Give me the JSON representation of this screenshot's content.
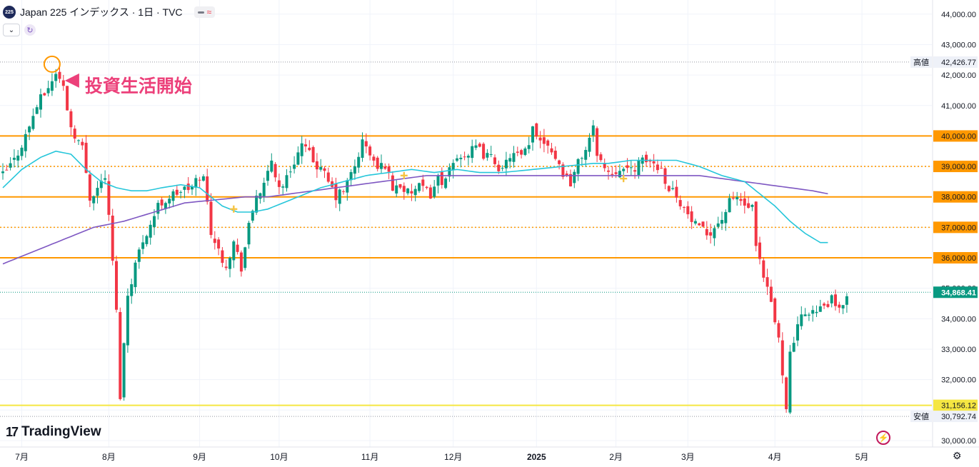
{
  "header": {
    "symbol_badge": "225",
    "title": "Japan 225 インデックス · 1日 · TVC",
    "collapse_icon": "chevron-down-icon",
    "sync_icon": "sync-icon"
  },
  "annotation": {
    "text": "投資生活開始"
  },
  "branding": {
    "logo_text": "TradingView",
    "logo_mark": "17"
  },
  "price_tags": {
    "high_label": "高値",
    "high_value": "42,426.77",
    "low_label": "安値",
    "low_value": "30,792.74",
    "last_value": "34,868.41",
    "support_value": "31,156.12"
  },
  "colors": {
    "up": "#089981",
    "down": "#f23645",
    "orange": "#ff9800",
    "yellow": "#f5e642",
    "ma_short": "#26c6da",
    "ma_long": "#7e57c2",
    "annotation": "#ec407a",
    "cross": "#f6c342"
  },
  "chart_data": {
    "type": "candlestick",
    "title": "Japan 225 インデックス · 1日 · TVC",
    "ylim": [
      29600,
      44300
    ],
    "y_ticks": [
      30000,
      31000,
      32000,
      33000,
      34000,
      35000,
      36000,
      37000,
      38000,
      39000,
      40000,
      41000,
      42000,
      43000,
      44000
    ],
    "y_tick_labels": [
      "30,000.00",
      "31,000.00",
      "32,000.00",
      "33,000.00",
      "34,000.00",
      "35,000.00",
      "36,000.00",
      "37,000.00",
      "38,000.00",
      "39,000.00",
      "40,000.00",
      "41,000.00",
      "42,000.00",
      "43,000.00",
      "44,000.00"
    ],
    "x_tick_labels": [
      "7月",
      "8月",
      "9月",
      "10月",
      "11月",
      "12月",
      "2025",
      "2月",
      "3月",
      "4月",
      "5月"
    ],
    "x_tick_bar_index": [
      5,
      28,
      52,
      73,
      97,
      119,
      141,
      162,
      181,
      204,
      227
    ],
    "bar_count": 235,
    "horizontal_levels": [
      {
        "value": 40000,
        "style": "solid",
        "label": "40,000.00"
      },
      {
        "value": 39000,
        "style": "dotted",
        "label": "39,000.00"
      },
      {
        "value": 38000,
        "style": "solid",
        "label": "38,000.00"
      },
      {
        "value": 37000,
        "style": "dotted",
        "label": "37,000.00"
      },
      {
        "value": 36000,
        "style": "solid",
        "label": "36,000.00"
      },
      {
        "value": 31156.12,
        "style": "solid-yellow",
        "label": "31,156.12"
      }
    ],
    "high": 42426.77,
    "low": 30792.74,
    "last": 34868.41,
    "anchors": [
      [
        0,
        38700
      ],
      [
        3,
        39200
      ],
      [
        6,
        40000
      ],
      [
        9,
        41000
      ],
      [
        13,
        41800
      ],
      [
        14,
        42100
      ],
      [
        16,
        41600
      ],
      [
        18,
        40300
      ],
      [
        21,
        39600
      ],
      [
        23,
        38000
      ],
      [
        25,
        38300
      ],
      [
        27,
        38700
      ],
      [
        28,
        37300
      ],
      [
        29,
        35900
      ],
      [
        30,
        34200
      ],
      [
        31,
        31500
      ],
      [
        33,
        34800
      ],
      [
        35,
        35800
      ],
      [
        37,
        36600
      ],
      [
        39,
        37100
      ],
      [
        41,
        37700
      ],
      [
        44,
        38000
      ],
      [
        47,
        38200
      ],
      [
        50,
        38300
      ],
      [
        52,
        38700
      ],
      [
        53,
        38600
      ],
      [
        54,
        37800
      ],
      [
        55,
        36900
      ],
      [
        57,
        36200
      ],
      [
        59,
        35800
      ],
      [
        61,
        36500
      ],
      [
        63,
        35700
      ],
      [
        65,
        37000
      ],
      [
        67,
        38100
      ],
      [
        69,
        38300
      ],
      [
        71,
        39200
      ],
      [
        73,
        38300
      ],
      [
        75,
        38600
      ],
      [
        77,
        39200
      ],
      [
        79,
        39700
      ],
      [
        82,
        39200
      ],
      [
        85,
        38700
      ],
      [
        88,
        38000
      ],
      [
        90,
        38200
      ],
      [
        93,
        39000
      ],
      [
        95,
        39800
      ],
      [
        97,
        39400
      ],
      [
        99,
        38900
      ],
      [
        101,
        39100
      ],
      [
        103,
        38300
      ],
      [
        105,
        38400
      ],
      [
        107,
        38100
      ],
      [
        110,
        38300
      ],
      [
        113,
        38100
      ],
      [
        115,
        38600
      ],
      [
        117,
        38500
      ],
      [
        119,
        39100
      ],
      [
        121,
        39400
      ],
      [
        123,
        39400
      ],
      [
        125,
        39600
      ],
      [
        127,
        39400
      ],
      [
        130,
        39200
      ],
      [
        132,
        38800
      ],
      [
        134,
        39400
      ],
      [
        137,
        39300
      ],
      [
        139,
        39600
      ],
      [
        140,
        40300
      ],
      [
        142,
        39900
      ],
      [
        144,
        39800
      ],
      [
        146,
        39300
      ],
      [
        148,
        38800
      ],
      [
        150,
        38500
      ],
      [
        152,
        39100
      ],
      [
        154,
        39600
      ],
      [
        156,
        40200
      ],
      [
        157,
        39500
      ],
      [
        159,
        38900
      ],
      [
        161,
        38800
      ],
      [
        163,
        39000
      ],
      [
        165,
        38800
      ],
      [
        167,
        39000
      ],
      [
        170,
        39200
      ],
      [
        172,
        39100
      ],
      [
        174,
        38900
      ],
      [
        176,
        38300
      ],
      [
        178,
        38100
      ],
      [
        180,
        37600
      ],
      [
        182,
        37200
      ],
      [
        184,
        36900
      ],
      [
        186,
        36800
      ],
      [
        188,
        37000
      ],
      [
        190,
        37300
      ],
      [
        192,
        37800
      ],
      [
        194,
        38000
      ],
      [
        196,
        37700
      ],
      [
        198,
        37600
      ],
      [
        199,
        36300
      ],
      [
        201,
        35300
      ],
      [
        203,
        34500
      ],
      [
        205,
        33300
      ],
      [
        207,
        31200
      ],
      [
        208,
        32800
      ],
      [
        209,
        33300
      ],
      [
        211,
        34000
      ],
      [
        213,
        34300
      ],
      [
        215,
        34200
      ],
      [
        217,
        34400
      ],
      [
        219,
        34600
      ],
      [
        221,
        34200
      ],
      [
        223,
        34868.41
      ]
    ],
    "ma_short_anchors": [
      [
        0,
        38300
      ],
      [
        5,
        38900
      ],
      [
        10,
        39300
      ],
      [
        14,
        39500
      ],
      [
        18,
        39400
      ],
      [
        22,
        38900
      ],
      [
        26,
        38500
      ],
      [
        30,
        38300
      ],
      [
        34,
        38200
      ],
      [
        38,
        38200
      ],
      [
        42,
        38300
      ],
      [
        47,
        38400
      ],
      [
        52,
        38300
      ],
      [
        55,
        38000
      ],
      [
        58,
        37700
      ],
      [
        62,
        37500
      ],
      [
        66,
        37500
      ],
      [
        70,
        37600
      ],
      [
        74,
        37800
      ],
      [
        78,
        38000
      ],
      [
        84,
        38300
      ],
      [
        90,
        38500
      ],
      [
        96,
        38700
      ],
      [
        102,
        38800
      ],
      [
        108,
        38900
      ],
      [
        114,
        38800
      ],
      [
        120,
        38900
      ],
      [
        126,
        38800
      ],
      [
        132,
        38800
      ],
      [
        140,
        38900
      ],
      [
        148,
        39000
      ],
      [
        156,
        39100
      ],
      [
        160,
        39100
      ],
      [
        166,
        39200
      ],
      [
        172,
        39200
      ],
      [
        178,
        39200
      ],
      [
        184,
        39000
      ],
      [
        190,
        38700
      ],
      [
        196,
        38500
      ],
      [
        200,
        38100
      ],
      [
        204,
        37700
      ],
      [
        208,
        37200
      ],
      [
        212,
        36800
      ],
      [
        216,
        36500
      ],
      [
        218,
        36500
      ]
    ],
    "ma_long_anchors": [
      [
        0,
        35800
      ],
      [
        8,
        36200
      ],
      [
        16,
        36600
      ],
      [
        24,
        37000
      ],
      [
        32,
        37200
      ],
      [
        40,
        37500
      ],
      [
        48,
        37800
      ],
      [
        56,
        37900
      ],
      [
        64,
        38000
      ],
      [
        70,
        38000
      ],
      [
        76,
        38100
      ],
      [
        82,
        38200
      ],
      [
        88,
        38300
      ],
      [
        94,
        38400
      ],
      [
        100,
        38500
      ],
      [
        106,
        38600
      ],
      [
        112,
        38700
      ],
      [
        118,
        38700
      ],
      [
        124,
        38700
      ],
      [
        130,
        38700
      ],
      [
        136,
        38700
      ],
      [
        142,
        38700
      ],
      [
        148,
        38700
      ],
      [
        154,
        38700
      ],
      [
        160,
        38700
      ],
      [
        166,
        38700
      ],
      [
        172,
        38700
      ],
      [
        178,
        38700
      ],
      [
        184,
        38700
      ],
      [
        190,
        38600
      ],
      [
        196,
        38500
      ],
      [
        202,
        38400
      ],
      [
        208,
        38300
      ],
      [
        214,
        38200
      ],
      [
        218,
        38100
      ]
    ],
    "cross_markers": [
      {
        "bar": 61,
        "value": 37600
      },
      {
        "bar": 106,
        "value": 38700
      },
      {
        "bar": 164,
        "value": 38600
      }
    ],
    "annotation_bar": 13
  }
}
